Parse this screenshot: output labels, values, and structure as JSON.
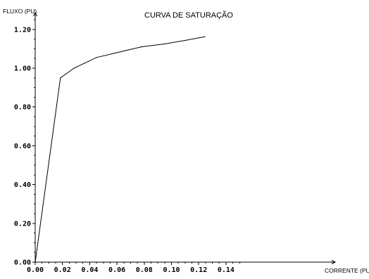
{
  "chart_data": {
    "type": "line",
    "title": "CURVA DE SATURAÇÃO",
    "xlabel": "CORRENTE (PU)",
    "ylabel": "FLUXO (PU)",
    "xlim": [
      0,
      0.15
    ],
    "ylim": [
      0,
      1.25
    ],
    "x_ticks": [
      "0.00",
      "0.02",
      "0.04",
      "0.06",
      "0.08",
      "0.10",
      "0.12",
      "0.14"
    ],
    "y_ticks": [
      "0.00",
      "0.20",
      "0.40",
      "0.60",
      "0.80",
      "1.00",
      "1.20"
    ],
    "grid": false,
    "line_color": "#000000",
    "series": [
      {
        "x": [
          0.0,
          0.0185,
          0.0285,
          0.036,
          0.045,
          0.06,
          0.078,
          0.095,
          0.11,
          0.1245
        ],
        "y": [
          0.0,
          0.95,
          1.0,
          1.025,
          1.055,
          1.08,
          1.11,
          1.125,
          1.143,
          1.162
        ]
      }
    ]
  }
}
